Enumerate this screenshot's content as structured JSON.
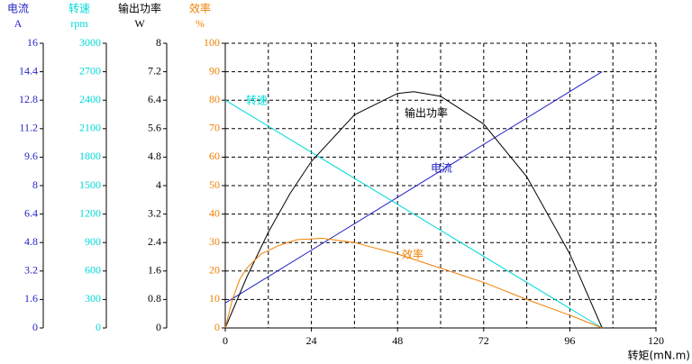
{
  "chart_data": {
    "type": "line",
    "x_label": "转矩(mN.m)",
    "xlim": [
      0,
      120
    ],
    "xticks": [
      0,
      24,
      48,
      72,
      96,
      120
    ],
    "x_grid_ticks": [
      12,
      36,
      60,
      84,
      108
    ],
    "grid": true,
    "y_axes": [
      {
        "name": "电流",
        "unit": "A",
        "color": "#2424c8",
        "lim": [
          0,
          16
        ],
        "ticks": [
          0,
          1.6,
          3.2,
          4.8,
          6.4,
          8,
          9.6,
          11.2,
          12.8,
          14.4,
          16
        ]
      },
      {
        "name": "转速",
        "unit": "rpm",
        "color": "#00d8d8",
        "lim": [
          0,
          3000
        ],
        "ticks": [
          0,
          300,
          600,
          900,
          1200,
          1500,
          1800,
          2100,
          2400,
          2700,
          3000
        ]
      },
      {
        "name": "输出功率",
        "unit": "W",
        "color": "#000000",
        "lim": [
          0,
          8
        ],
        "ticks": [
          0,
          0.8,
          1.6,
          2.4,
          3.2,
          4,
          4.8,
          5.6,
          6.4,
          7.2,
          8
        ]
      },
      {
        "name": "效率",
        "unit": "%",
        "color": "#f08000",
        "lim": [
          0,
          100
        ],
        "ticks": [
          0,
          10,
          20,
          30,
          40,
          50,
          60,
          70,
          80,
          90,
          100
        ]
      }
    ],
    "series": [
      {
        "name": "电流",
        "color": "#2424c8",
        "axis": 0,
        "x": [
          0,
          105
        ],
        "values": [
          1.4,
          14.4
        ]
      },
      {
        "name": "转速",
        "color": "#00d8d8",
        "axis": 1,
        "x": [
          0,
          105
        ],
        "values": [
          2400,
          0
        ]
      },
      {
        "name": "输出功率",
        "color": "#000000",
        "axis": 2,
        "x": [
          0,
          6,
          12,
          18,
          24,
          36,
          48,
          52.5,
          60,
          72,
          84,
          96,
          105
        ],
        "values": [
          0,
          1.43,
          2.69,
          3.77,
          4.68,
          5.99,
          6.59,
          6.64,
          6.51,
          5.73,
          4.25,
          2.08,
          0
        ]
      },
      {
        "name": "效率",
        "color": "#f08000",
        "axis": 3,
        "x": [
          0,
          2,
          4,
          6,
          10,
          15,
          20,
          27,
          36,
          48,
          60,
          72,
          84,
          96,
          105
        ],
        "values": [
          0,
          10,
          17,
          21,
          26,
          29,
          31,
          31.5,
          30,
          26,
          21,
          16,
          10,
          4.5,
          0
        ]
      }
    ]
  }
}
